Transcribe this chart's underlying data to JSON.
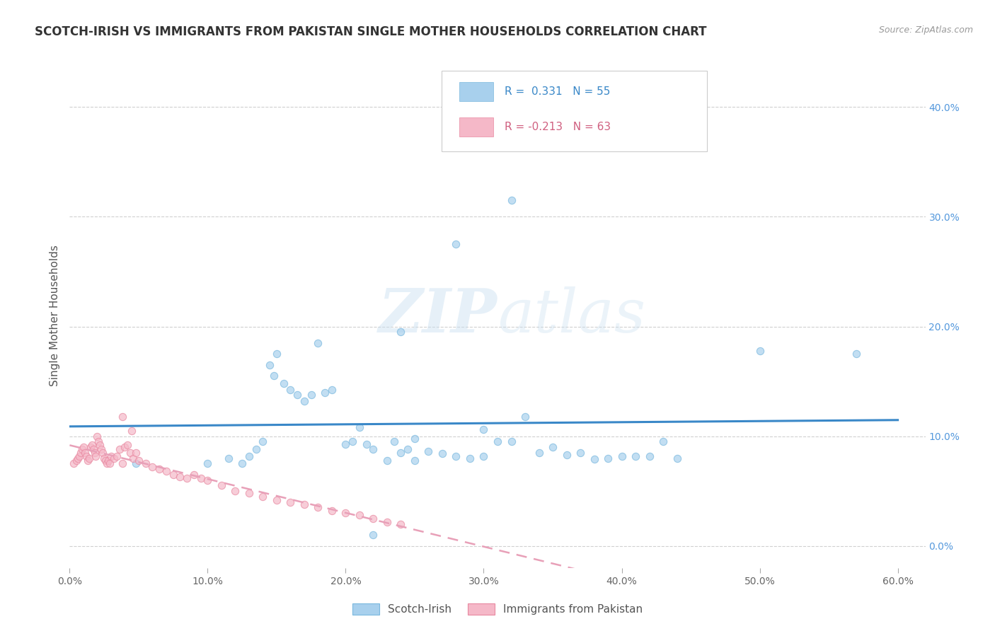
{
  "title": "SCOTCH-IRISH VS IMMIGRANTS FROM PAKISTAN SINGLE MOTHER HOUSEHOLDS CORRELATION CHART",
  "source": "Source: ZipAtlas.com",
  "ylabel": "Single Mother Households",
  "watermark_zip": "ZIP",
  "watermark_atlas": "atlas",
  "blue_R": 0.331,
  "blue_N": 55,
  "pink_R": -0.213,
  "pink_N": 63,
  "xlim": [
    0.0,
    0.62
  ],
  "ylim": [
    -0.02,
    0.44
  ],
  "xticks": [
    0.0,
    0.1,
    0.2,
    0.3,
    0.4,
    0.5,
    0.6
  ],
  "xtick_labels": [
    "0.0%",
    "10.0%",
    "20.0%",
    "30.0%",
    "40.0%",
    "50.0%",
    "60.0%"
  ],
  "yticks": [
    0.0,
    0.1,
    0.2,
    0.3,
    0.4
  ],
  "ytick_labels": [
    "0.0%",
    "10.0%",
    "20.0%",
    "30.0%",
    "40.0%"
  ],
  "blue_color": "#a8d0ed",
  "pink_color": "#f5b8c8",
  "blue_edge_color": "#7ab8de",
  "pink_edge_color": "#e888a0",
  "blue_line_color": "#3a88c8",
  "pink_line_color": "#e8a0b8",
  "legend_blue_label": "Scotch-Irish",
  "legend_pink_label": "Immigrants from Pakistan",
  "blue_x": [
    0.048,
    0.1,
    0.115,
    0.125,
    0.13,
    0.135,
    0.14,
    0.145,
    0.148,
    0.15,
    0.155,
    0.16,
    0.165,
    0.17,
    0.175,
    0.18,
    0.185,
    0.19,
    0.2,
    0.205,
    0.21,
    0.215,
    0.22,
    0.23,
    0.235,
    0.24,
    0.245,
    0.25,
    0.26,
    0.27,
    0.28,
    0.29,
    0.3,
    0.31,
    0.32,
    0.33,
    0.34,
    0.35,
    0.36,
    0.37,
    0.38,
    0.39,
    0.4,
    0.41,
    0.42,
    0.43,
    0.44,
    0.32,
    0.28,
    0.24,
    0.3,
    0.25,
    0.5,
    0.57,
    0.22
  ],
  "blue_y": [
    0.075,
    0.075,
    0.08,
    0.075,
    0.082,
    0.088,
    0.095,
    0.165,
    0.155,
    0.175,
    0.148,
    0.142,
    0.138,
    0.132,
    0.138,
    0.185,
    0.14,
    0.142,
    0.093,
    0.095,
    0.108,
    0.093,
    0.088,
    0.078,
    0.095,
    0.085,
    0.088,
    0.098,
    0.086,
    0.084,
    0.082,
    0.08,
    0.106,
    0.095,
    0.095,
    0.118,
    0.085,
    0.09,
    0.083,
    0.085,
    0.079,
    0.08,
    0.082,
    0.082,
    0.082,
    0.095,
    0.08,
    0.315,
    0.275,
    0.195,
    0.082,
    0.078,
    0.178,
    0.175,
    0.01
  ],
  "pink_x": [
    0.003,
    0.005,
    0.006,
    0.007,
    0.008,
    0.009,
    0.01,
    0.011,
    0.012,
    0.013,
    0.014,
    0.015,
    0.016,
    0.017,
    0.018,
    0.019,
    0.02,
    0.021,
    0.022,
    0.023,
    0.024,
    0.025,
    0.026,
    0.027,
    0.028,
    0.029,
    0.03,
    0.032,
    0.034,
    0.036,
    0.038,
    0.04,
    0.042,
    0.044,
    0.046,
    0.048,
    0.05,
    0.055,
    0.06,
    0.065,
    0.07,
    0.075,
    0.08,
    0.085,
    0.09,
    0.095,
    0.1,
    0.11,
    0.12,
    0.13,
    0.14,
    0.15,
    0.16,
    0.17,
    0.18,
    0.19,
    0.2,
    0.21,
    0.22,
    0.23,
    0.24,
    0.038,
    0.045
  ],
  "pink_y": [
    0.075,
    0.078,
    0.08,
    0.082,
    0.085,
    0.088,
    0.09,
    0.085,
    0.082,
    0.078,
    0.08,
    0.09,
    0.092,
    0.088,
    0.085,
    0.082,
    0.1,
    0.095,
    0.092,
    0.088,
    0.085,
    0.08,
    0.078,
    0.075,
    0.078,
    0.075,
    0.082,
    0.08,
    0.082,
    0.088,
    0.075,
    0.09,
    0.092,
    0.085,
    0.08,
    0.085,
    0.078,
    0.075,
    0.072,
    0.07,
    0.068,
    0.065,
    0.063,
    0.062,
    0.065,
    0.062,
    0.06,
    0.055,
    0.05,
    0.048,
    0.045,
    0.042,
    0.04,
    0.038,
    0.035,
    0.032,
    0.03,
    0.028,
    0.025,
    0.022,
    0.02,
    0.118,
    0.105
  ],
  "background_color": "#ffffff",
  "grid_color": "#d0d0d0",
  "title_fontsize": 12,
  "axis_label_fontsize": 11,
  "tick_fontsize": 10,
  "right_tick_color": "#5599dd"
}
